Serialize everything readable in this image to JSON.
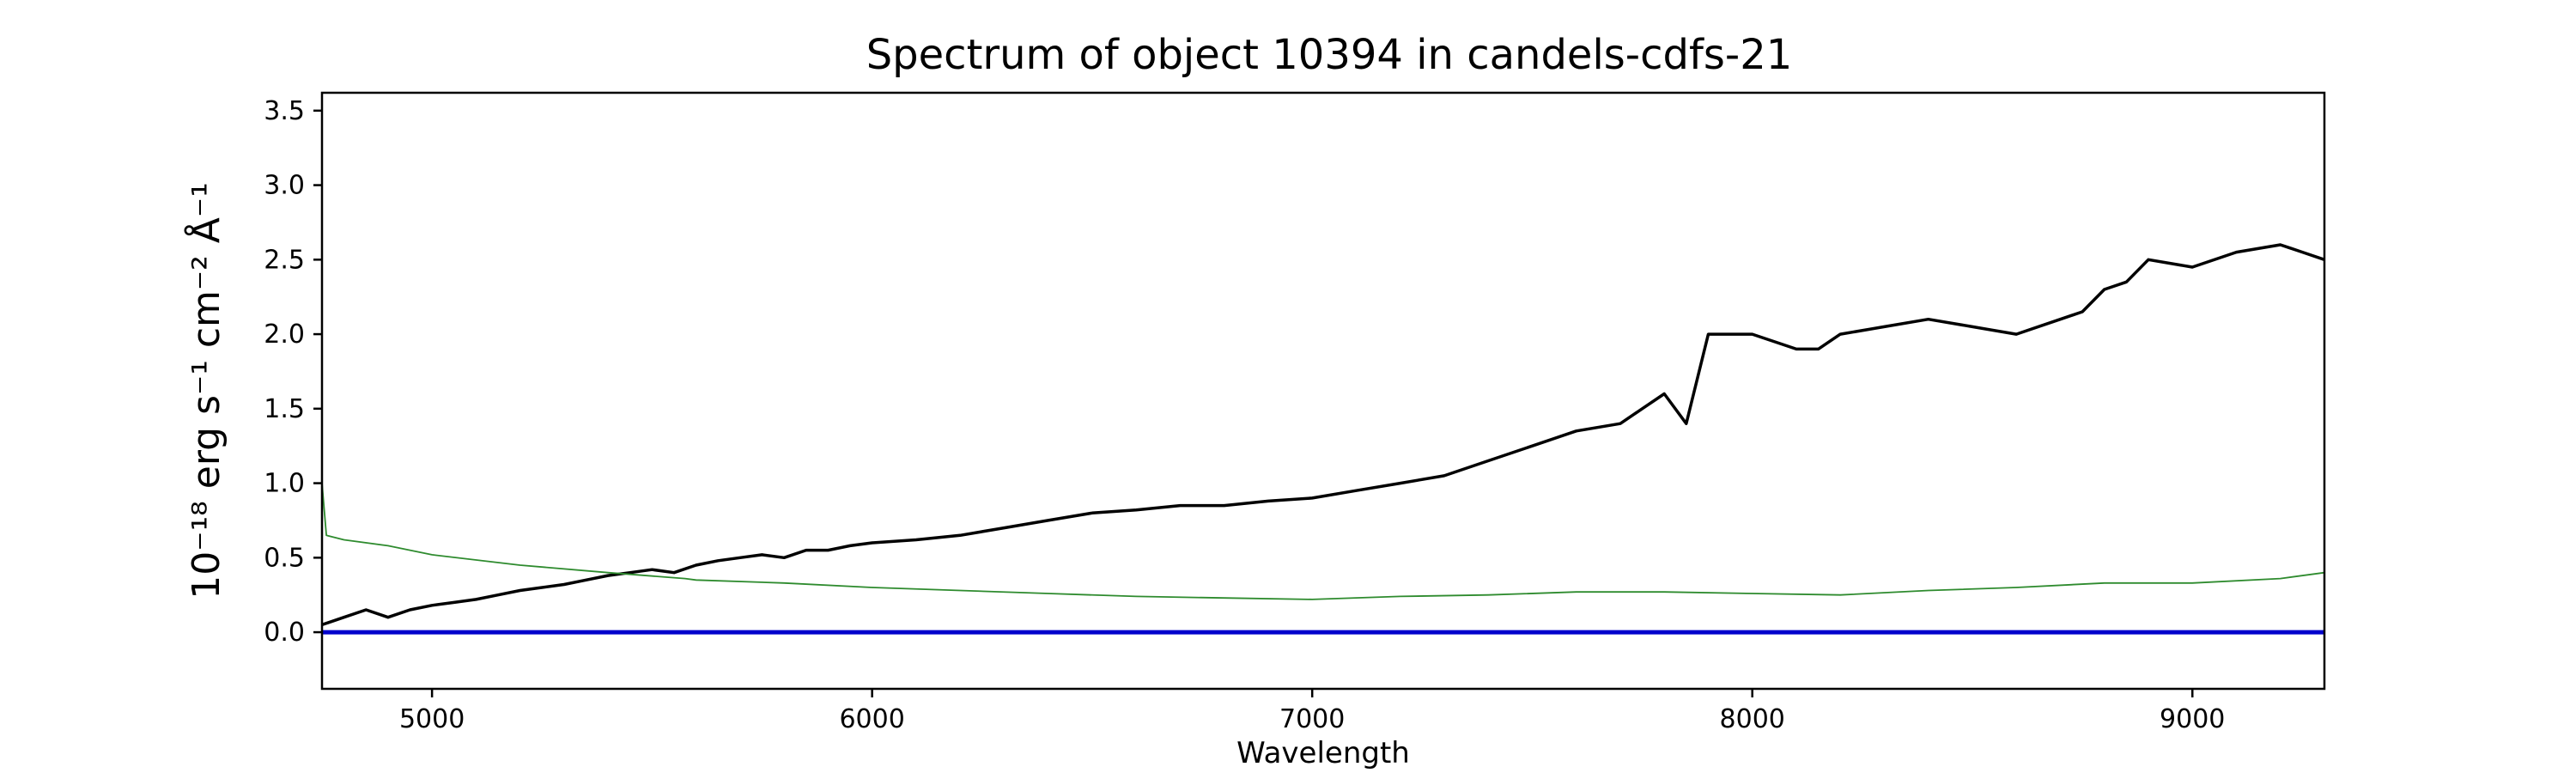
{
  "chart_data": {
    "type": "line",
    "title": "Spectrum of object 10394 in candels-cdfs-21",
    "xlabel": "Wavelength",
    "ylabel": "10⁻¹⁸ erg s⁻¹ cm⁻² Å⁻¹",
    "xlim": [
      4750,
      9300
    ],
    "ylim": [
      -0.38,
      3.62
    ],
    "xticks": [
      5000,
      6000,
      7000,
      8000,
      9000
    ],
    "xtick_labels": [
      "5000",
      "6000",
      "7000",
      "8000",
      "9000"
    ],
    "yticks": [
      0.0,
      0.5,
      1.0,
      1.5,
      2.0,
      2.5,
      3.0,
      3.5
    ],
    "ytick_labels": [
      "0.0",
      "0.5",
      "1.0",
      "1.5",
      "2.0",
      "2.5",
      "3.0",
      "3.5"
    ],
    "grid": false,
    "series": [
      {
        "color": "#000000",
        "x": [
          4750,
          4800,
          4850,
          4900,
          4950,
          5000,
          5050,
          5100,
          5150,
          5200,
          5250,
          5300,
          5350,
          5400,
          5450,
          5500,
          5550,
          5600,
          5650,
          5700,
          5750,
          5800,
          5850,
          5900,
          5950,
          6000,
          6100,
          6200,
          6300,
          6400,
          6500,
          6600,
          6700,
          6800,
          6900,
          7000,
          7100,
          7200,
          7300,
          7400,
          7500,
          7600,
          7700,
          7750,
          7800,
          7850,
          7900,
          8000,
          8100,
          8150,
          8200,
          8300,
          8400,
          8500,
          8600,
          8700,
          8750,
          8800,
          8850,
          8900,
          9000,
          9100,
          9200,
          9250,
          9300
        ],
        "y": [
          0.05,
          0.1,
          0.15,
          0.1,
          0.15,
          0.18,
          0.2,
          0.22,
          0.25,
          0.28,
          0.3,
          0.32,
          0.35,
          0.38,
          0.4,
          0.42,
          0.4,
          0.45,
          0.48,
          0.5,
          0.52,
          0.5,
          0.55,
          0.55,
          0.58,
          0.6,
          0.62,
          0.65,
          0.7,
          0.75,
          0.8,
          0.82,
          0.85,
          0.85,
          0.88,
          0.9,
          0.95,
          1.0,
          1.05,
          1.15,
          1.25,
          1.35,
          1.4,
          1.5,
          1.6,
          1.4,
          2.0,
          2.0,
          1.9,
          1.9,
          2.0,
          2.05,
          2.1,
          2.05,
          2.0,
          2.1,
          2.15,
          2.3,
          2.35,
          2.5,
          2.45,
          2.55,
          2.6,
          2.55,
          2.5
        ]
      },
      {
        "color": "#2e8b2e",
        "x": [
          4750,
          4760,
          4800,
          4900,
          5000,
          5200,
          5400,
          5575,
          5600,
          5800,
          6000,
          6200,
          6400,
          6600,
          6800,
          7000,
          7200,
          7400,
          7600,
          7800,
          8000,
          8200,
          8400,
          8600,
          8800,
          9000,
          9200,
          9300
        ],
        "y": [
          1.0,
          0.65,
          0.62,
          0.58,
          0.52,
          0.45,
          0.4,
          0.36,
          0.35,
          0.33,
          0.3,
          0.28,
          0.26,
          0.24,
          0.23,
          0.22,
          0.24,
          0.25,
          0.27,
          0.27,
          0.26,
          0.25,
          0.28,
          0.3,
          0.33,
          0.33,
          0.36,
          0.4
        ]
      },
      {
        "color": "#0000cc",
        "x": [
          4750,
          9300
        ],
        "y": [
          0.0,
          0.0
        ]
      }
    ]
  }
}
